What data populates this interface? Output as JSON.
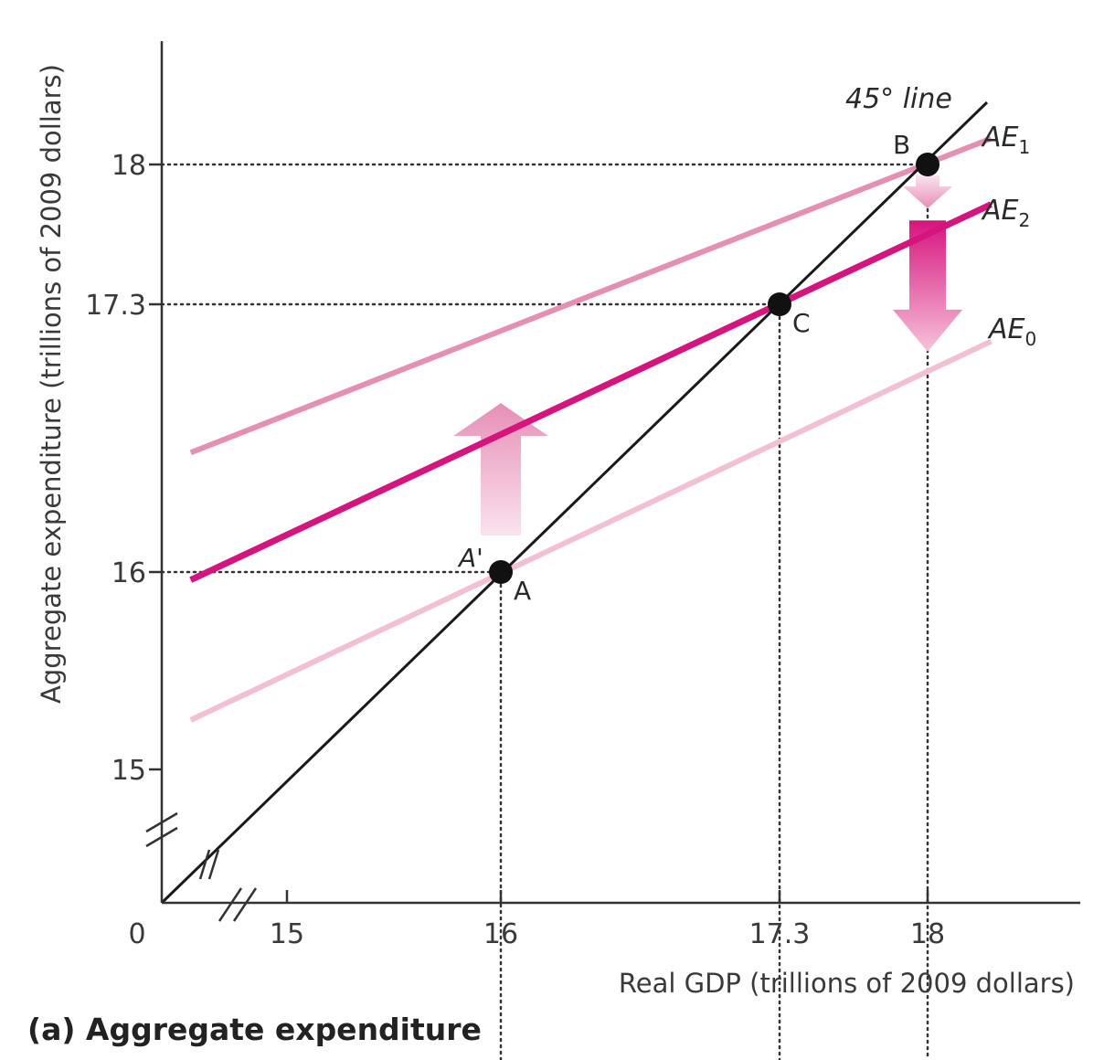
{
  "chart_data": {
    "type": "line",
    "panel_title": "(a) Aggregate expenditure",
    "xlabel": "Real GDP (trillions of 2009 dollars)",
    "ylabel": "Aggregate expenditure (trillions of 2009 dollars)",
    "origin_label": "0",
    "x_ticks": [
      "15",
      "16",
      "17.3",
      "18"
    ],
    "y_ticks": [
      "15",
      "16",
      "17.3",
      "18"
    ],
    "axis_breaks": true,
    "series": [
      {
        "name": "45° line",
        "color": "#1a1a1a",
        "x": [
          14.4,
          18.3
        ],
        "y": [
          14.4,
          18.3
        ]
      },
      {
        "name": "AE1",
        "label_main": "AE",
        "label_sub": "1",
        "color": "#e58fb5",
        "x": [
          14.55,
          18.3
        ],
        "y": [
          16.58,
          18.13
        ]
      },
      {
        "name": "AE2",
        "label_main": "AE",
        "label_sub": "2",
        "color": "#d6147e",
        "x": [
          14.55,
          18.3
        ],
        "y": [
          15.96,
          17.8
        ]
      },
      {
        "name": "AE0",
        "label_main": "AE",
        "label_sub": "0",
        "color": "#f2bfd4",
        "x": [
          14.55,
          18.3
        ],
        "y": [
          15.25,
          17.12
        ]
      }
    ],
    "points": [
      {
        "label": "A",
        "x": 16.0,
        "y": 16.0
      },
      {
        "label": "C",
        "x": 17.3,
        "y": 17.3
      },
      {
        "label": "B",
        "x": 18.0,
        "y": 18.0
      }
    ],
    "extra_labels": [
      {
        "label": "A'",
        "x": 16.0,
        "y": 16.0
      }
    ],
    "guides": [
      {
        "x": 16.0,
        "y": 16.0
      },
      {
        "x": 17.3,
        "y": 17.3
      },
      {
        "x": 18.0,
        "y": 18.0
      }
    ],
    "arrows": [
      {
        "direction": "up",
        "x": 16.0,
        "from_y": 16.0,
        "to_y": 16.82,
        "color": "#e78fb7"
      },
      {
        "direction": "down",
        "x": 18.0,
        "from_y": 18.0,
        "to_y": 17.78,
        "color": "#e78fb7"
      },
      {
        "direction": "down",
        "x": 18.0,
        "from_y": 17.72,
        "to_y": 17.07,
        "color": "#d6147e"
      }
    ]
  }
}
